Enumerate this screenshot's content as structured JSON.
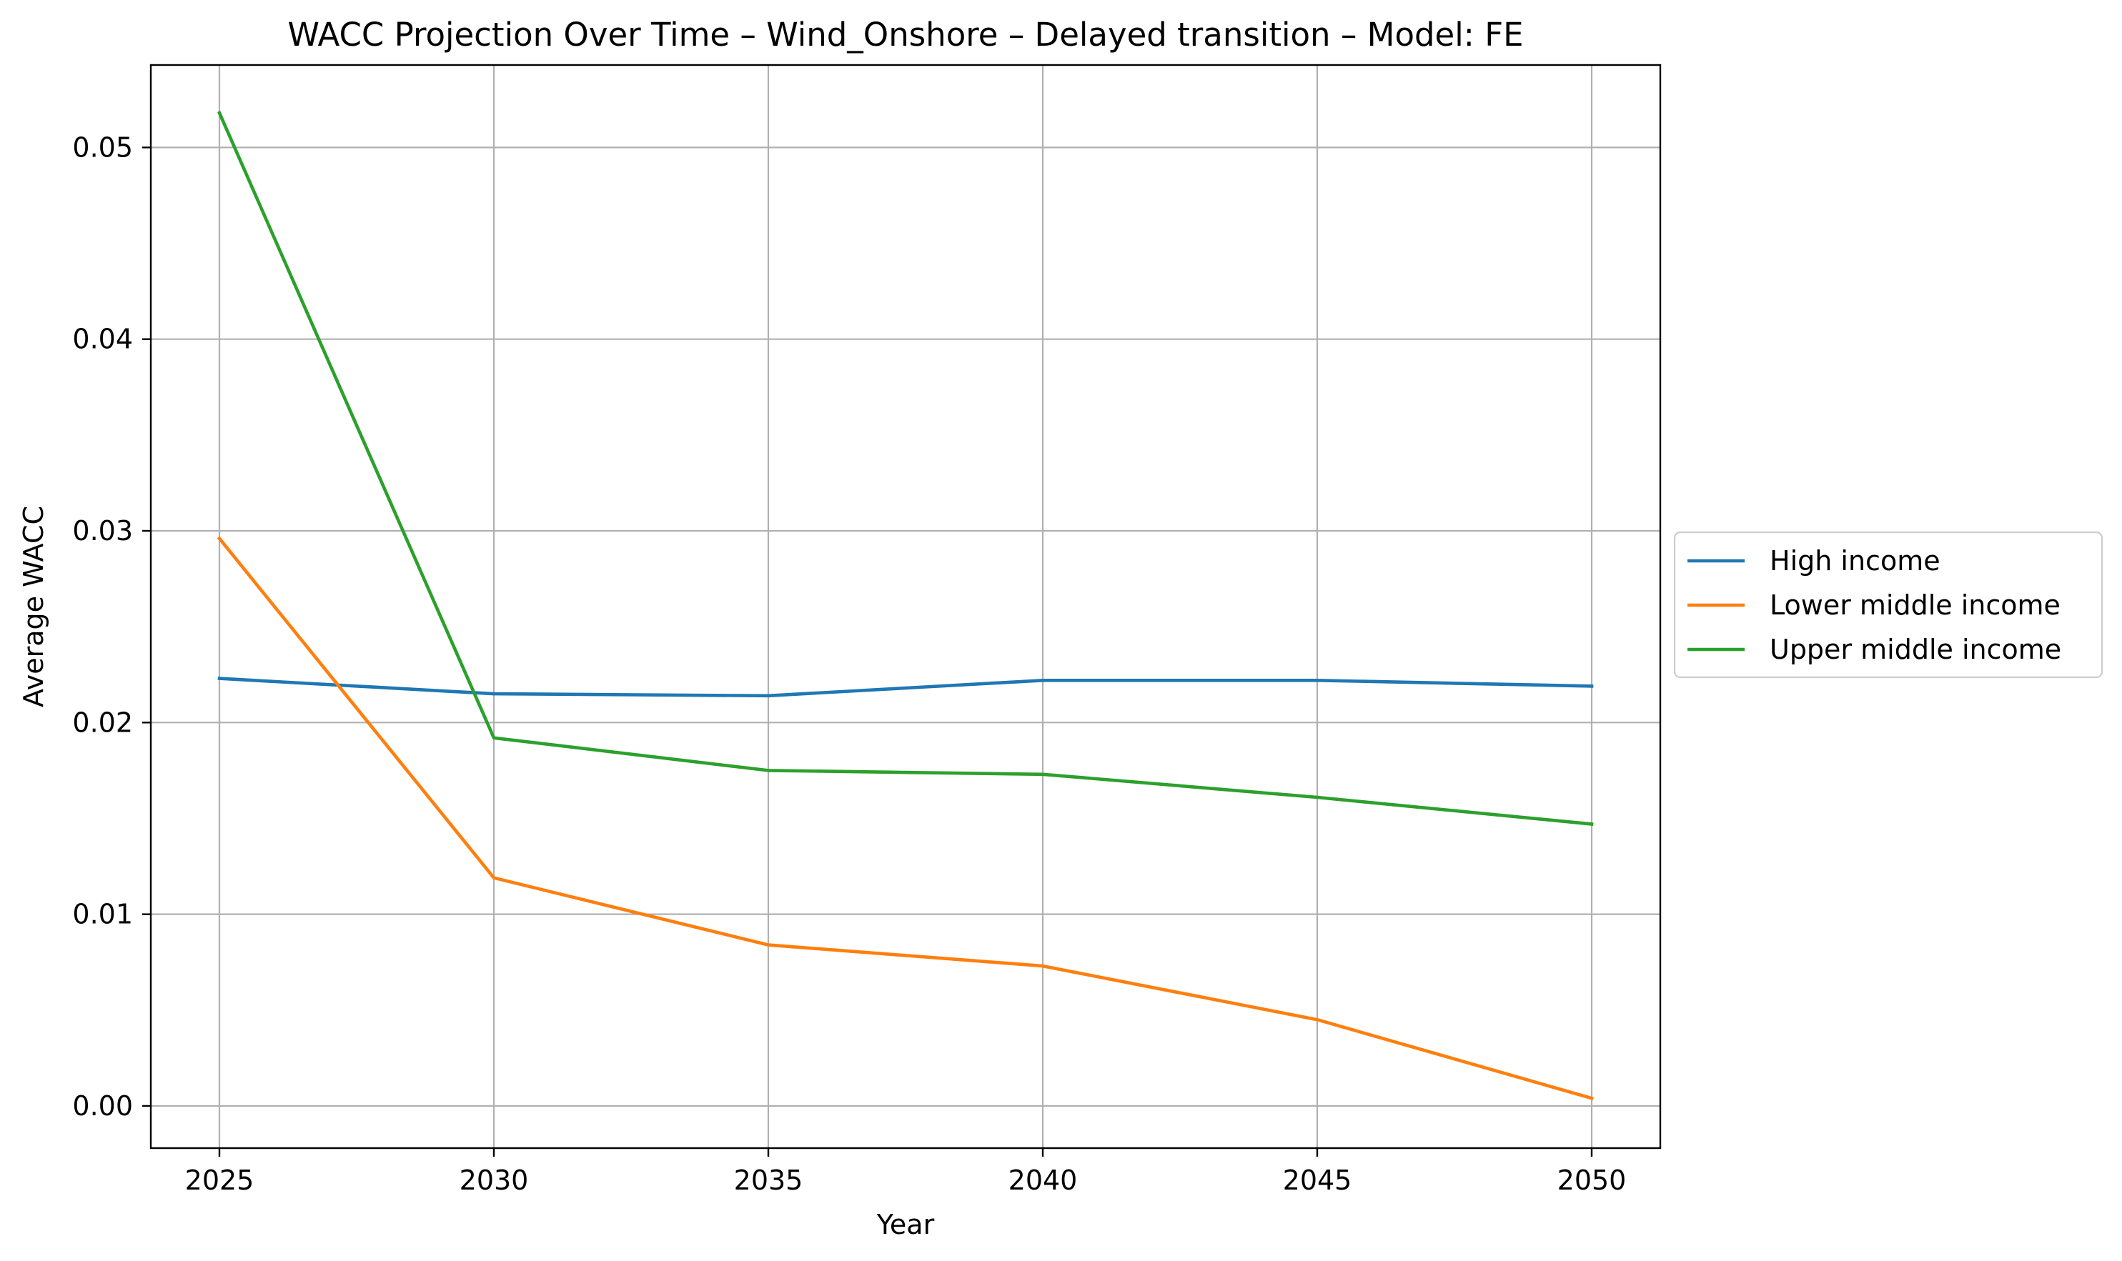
{
  "chart_data": {
    "type": "line",
    "title": "WACC Projection Over Time – Wind_Onshore – Delayed transition – Model: FE",
    "xlabel": "Year",
    "ylabel": "Average WACC",
    "x": [
      2025,
      2030,
      2035,
      2040,
      2045,
      2050
    ],
    "xticks": [
      "2025",
      "2030",
      "2035",
      "2040",
      "2045",
      "2050"
    ],
    "yticks": [
      "0.00",
      "0.01",
      "0.02",
      "0.03",
      "0.04",
      "0.05"
    ],
    "xlim": [
      2023.75,
      2051.25
    ],
    "ylim": [
      -0.0022,
      0.0543
    ],
    "grid": true,
    "legend_position": "outside right, center",
    "series": [
      {
        "name": "High income",
        "color": "#1f77b4",
        "values": [
          0.0223,
          0.0215,
          0.0214,
          0.0222,
          0.0222,
          0.0219
        ]
      },
      {
        "name": "Lower middle income",
        "color": "#ff7f0e",
        "values": [
          0.0296,
          0.0119,
          0.0084,
          0.0073,
          0.0045,
          0.0004
        ]
      },
      {
        "name": "Upper middle income",
        "color": "#2ca02c",
        "values": [
          0.0518,
          0.0192,
          0.0175,
          0.0173,
          0.0161,
          0.0147
        ]
      }
    ]
  }
}
